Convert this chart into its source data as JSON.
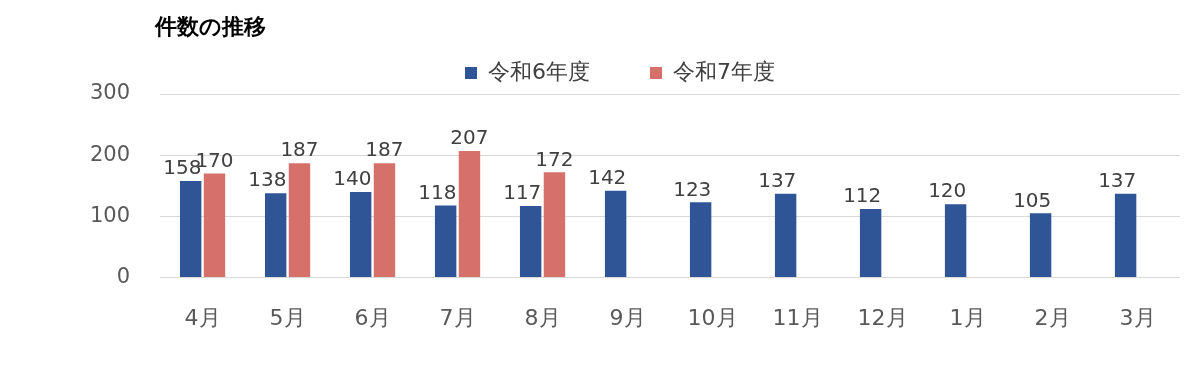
{
  "chart_data": {
    "type": "bar",
    "title": "件数の推移",
    "categories": [
      "4月",
      "5月",
      "6月",
      "7月",
      "8月",
      "9月",
      "10月",
      "11月",
      "12月",
      "1月",
      "2月",
      "3月"
    ],
    "series": [
      {
        "name": "令和6年度",
        "color": "#2f5597",
        "values": [
          158,
          138,
          140,
          118,
          117,
          142,
          123,
          137,
          112,
          120,
          105,
          137
        ]
      },
      {
        "name": "令和7年度",
        "color": "#d6706b",
        "values": [
          170,
          187,
          187,
          207,
          172,
          null,
          null,
          null,
          null,
          null,
          null,
          null
        ]
      }
    ],
    "ylim": [
      0,
      300
    ],
    "yticks": [
      0,
      100,
      200,
      300
    ],
    "grid": "y",
    "legend": "top",
    "data_labels": true
  }
}
